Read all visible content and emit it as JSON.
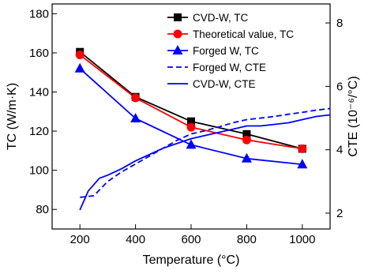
{
  "chart_data": {
    "type": "line",
    "title": "",
    "xlabel": "Temperature (°C)",
    "ylabel_left": "TC (W/m·K)",
    "ylabel_right": "CTE (10⁻⁶/°C)",
    "xlim": [
      100,
      1100
    ],
    "ylim_left": [
      70,
      185
    ],
    "ylim_right": [
      1.5,
      8.6
    ],
    "x_ticks": [
      200,
      400,
      600,
      800,
      1000
    ],
    "y_ticks_left": [
      80,
      100,
      120,
      140,
      160,
      180
    ],
    "y_ticks_right": [
      2,
      4,
      6,
      8
    ],
    "grid": false,
    "legend_position": "top-right",
    "series": [
      {
        "name": "CVD-W, TC",
        "axis": "left",
        "color": "#000000",
        "marker": "square",
        "line": "solid",
        "x": [
          200,
          400,
          600,
          800,
          1000
        ],
        "y": [
          160.5,
          137.5,
          125,
          118.5,
          111
        ]
      },
      {
        "name": "Theoretical value, TC",
        "axis": "left",
        "color": "#ff0000",
        "marker": "circle",
        "line": "solid",
        "x": [
          200,
          400,
          600,
          800,
          1000
        ],
        "y": [
          159,
          137,
          122,
          115.5,
          111
        ]
      },
      {
        "name": "Forged W, TC",
        "axis": "left",
        "color": "#0000ff",
        "marker": "triangle",
        "line": "solid",
        "x": [
          200,
          400,
          600,
          800,
          1000
        ],
        "y": [
          152,
          126.5,
          113,
          106,
          103
        ]
      },
      {
        "name": "Forged W, CTE",
        "axis": "right",
        "color": "#0000ff",
        "marker": "none",
        "line": "dashed",
        "x": [
          200,
          250,
          300,
          350,
          400,
          450,
          500,
          550,
          600,
          650,
          700,
          750,
          800,
          850,
          900,
          950,
          1000,
          1050,
          1100
        ],
        "y": [
          2.5,
          2.55,
          3.0,
          3.3,
          3.55,
          3.8,
          4.05,
          4.3,
          4.5,
          4.6,
          4.72,
          4.85,
          4.95,
          5.0,
          5.05,
          5.12,
          5.18,
          5.25,
          5.3
        ]
      },
      {
        "name": "CVD-W, CTE",
        "axis": "right",
        "color": "#0000ff",
        "marker": "none",
        "line": "solid",
        "x": [
          200,
          230,
          270,
          300,
          350,
          400,
          450,
          500,
          550,
          600,
          650,
          700,
          750,
          800,
          850,
          900,
          950,
          1000,
          1050,
          1100
        ],
        "y": [
          2.1,
          2.7,
          3.1,
          3.2,
          3.4,
          3.65,
          3.85,
          4.05,
          4.2,
          4.35,
          4.45,
          4.55,
          4.65,
          4.75,
          4.75,
          4.8,
          4.85,
          4.95,
          5.05,
          5.1
        ]
      }
    ]
  }
}
